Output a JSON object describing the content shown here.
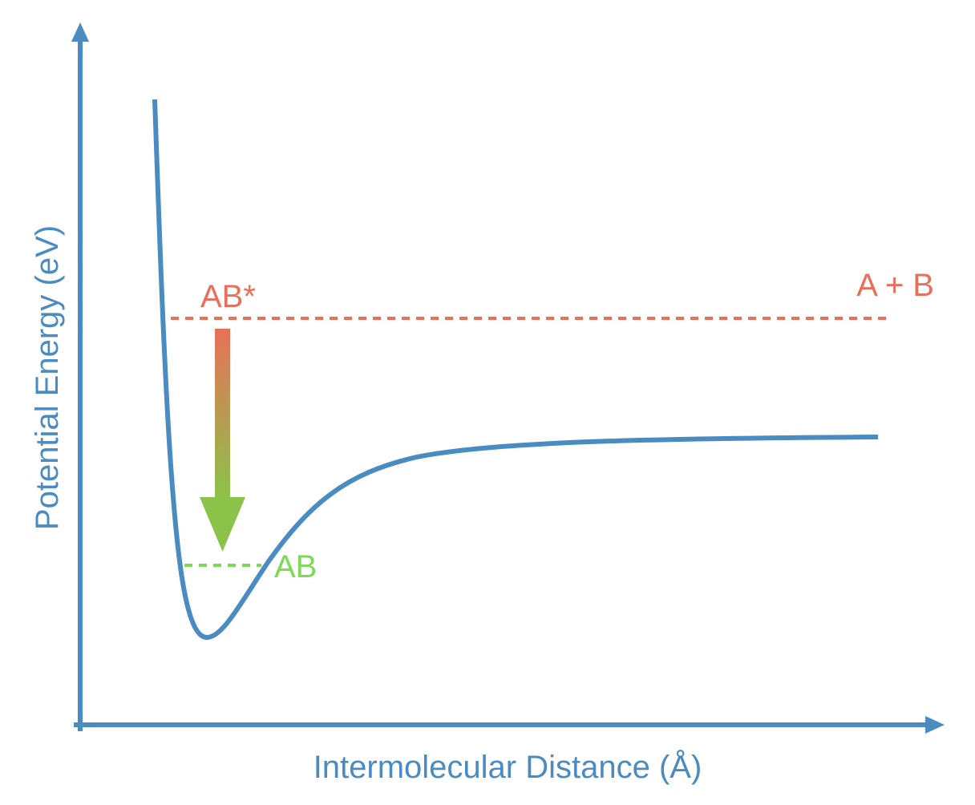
{
  "diagram": {
    "x_axis_label": "Intermolecular Distance (Å)",
    "y_axis_label": "Potential Energy (eV)",
    "excited_level_label": "AB*",
    "dissociation_label": "A + B",
    "ground_level_label": "AB",
    "colors": {
      "axis": "#4a8bc2",
      "curve": "#4a8bc2",
      "excited": "#e8705a",
      "ground": "#7ed957",
      "arrow_top": "#e8705a",
      "arrow_bottom": "#8bc34a"
    }
  }
}
